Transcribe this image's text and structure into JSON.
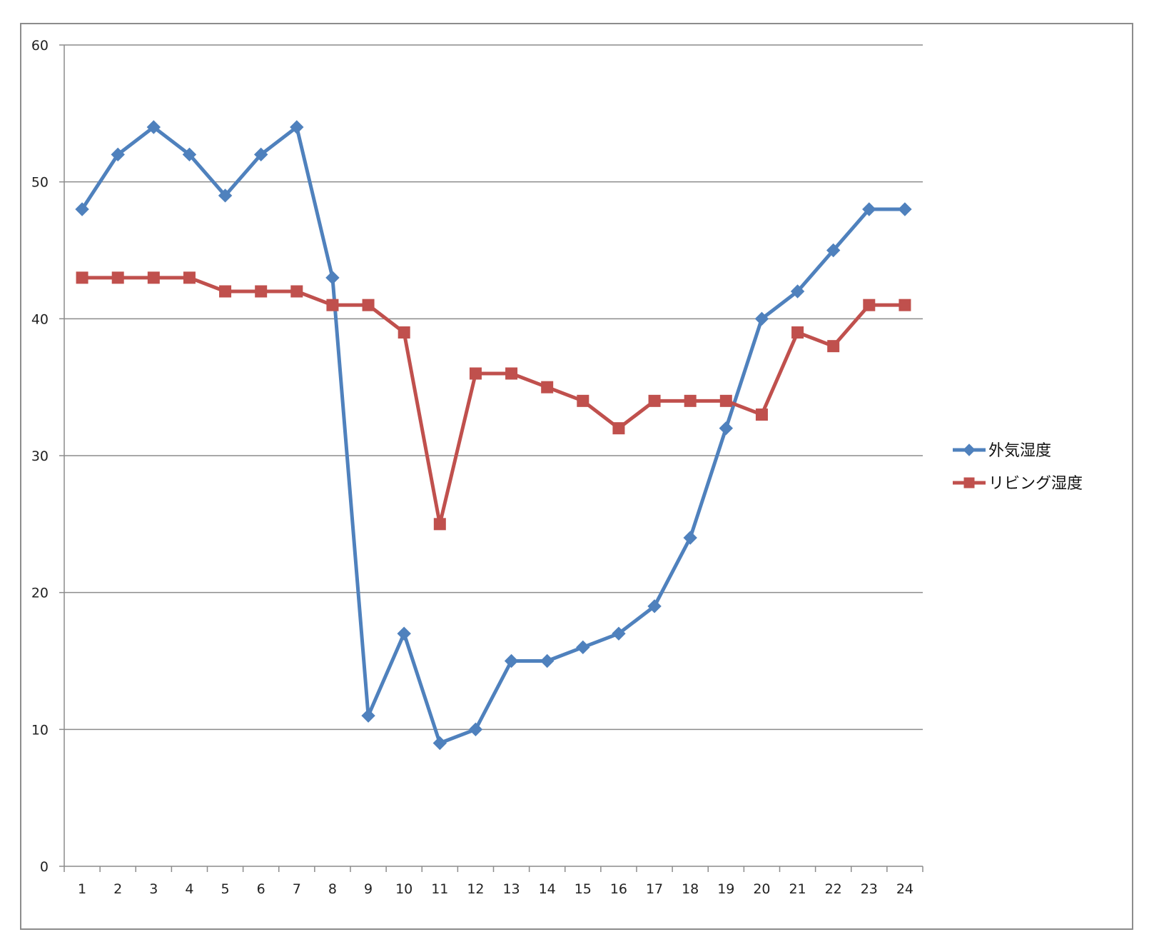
{
  "chart_data": {
    "type": "line",
    "title": "",
    "xlabel": "",
    "ylabel": "",
    "x": [
      "1",
      "2",
      "3",
      "4",
      "5",
      "6",
      "7",
      "8",
      "9",
      "10",
      "11",
      "12",
      "13",
      "14",
      "15",
      "16",
      "17",
      "18",
      "19",
      "20",
      "21",
      "22",
      "23",
      "24"
    ],
    "ylim": [
      0,
      60
    ],
    "yticks": [
      0,
      10,
      20,
      30,
      40,
      50,
      60
    ],
    "grid": "horizontal",
    "legend_position": "right",
    "series": [
      {
        "name": "外気湿度",
        "color": "#4f81bd",
        "marker": "diamond",
        "values": [
          48,
          52,
          54,
          52,
          49,
          52,
          54,
          43,
          11,
          17,
          9,
          10,
          15,
          15,
          16,
          17,
          19,
          24,
          32,
          40,
          42,
          45,
          48,
          48
        ]
      },
      {
        "name": "リビング湿度",
        "color": "#c0504d",
        "marker": "square",
        "values": [
          43,
          43,
          43,
          43,
          42,
          42,
          42,
          41,
          41,
          39,
          25,
          36,
          36,
          35,
          34,
          32,
          34,
          34,
          34,
          33,
          39,
          38,
          41,
          41
        ]
      }
    ]
  }
}
